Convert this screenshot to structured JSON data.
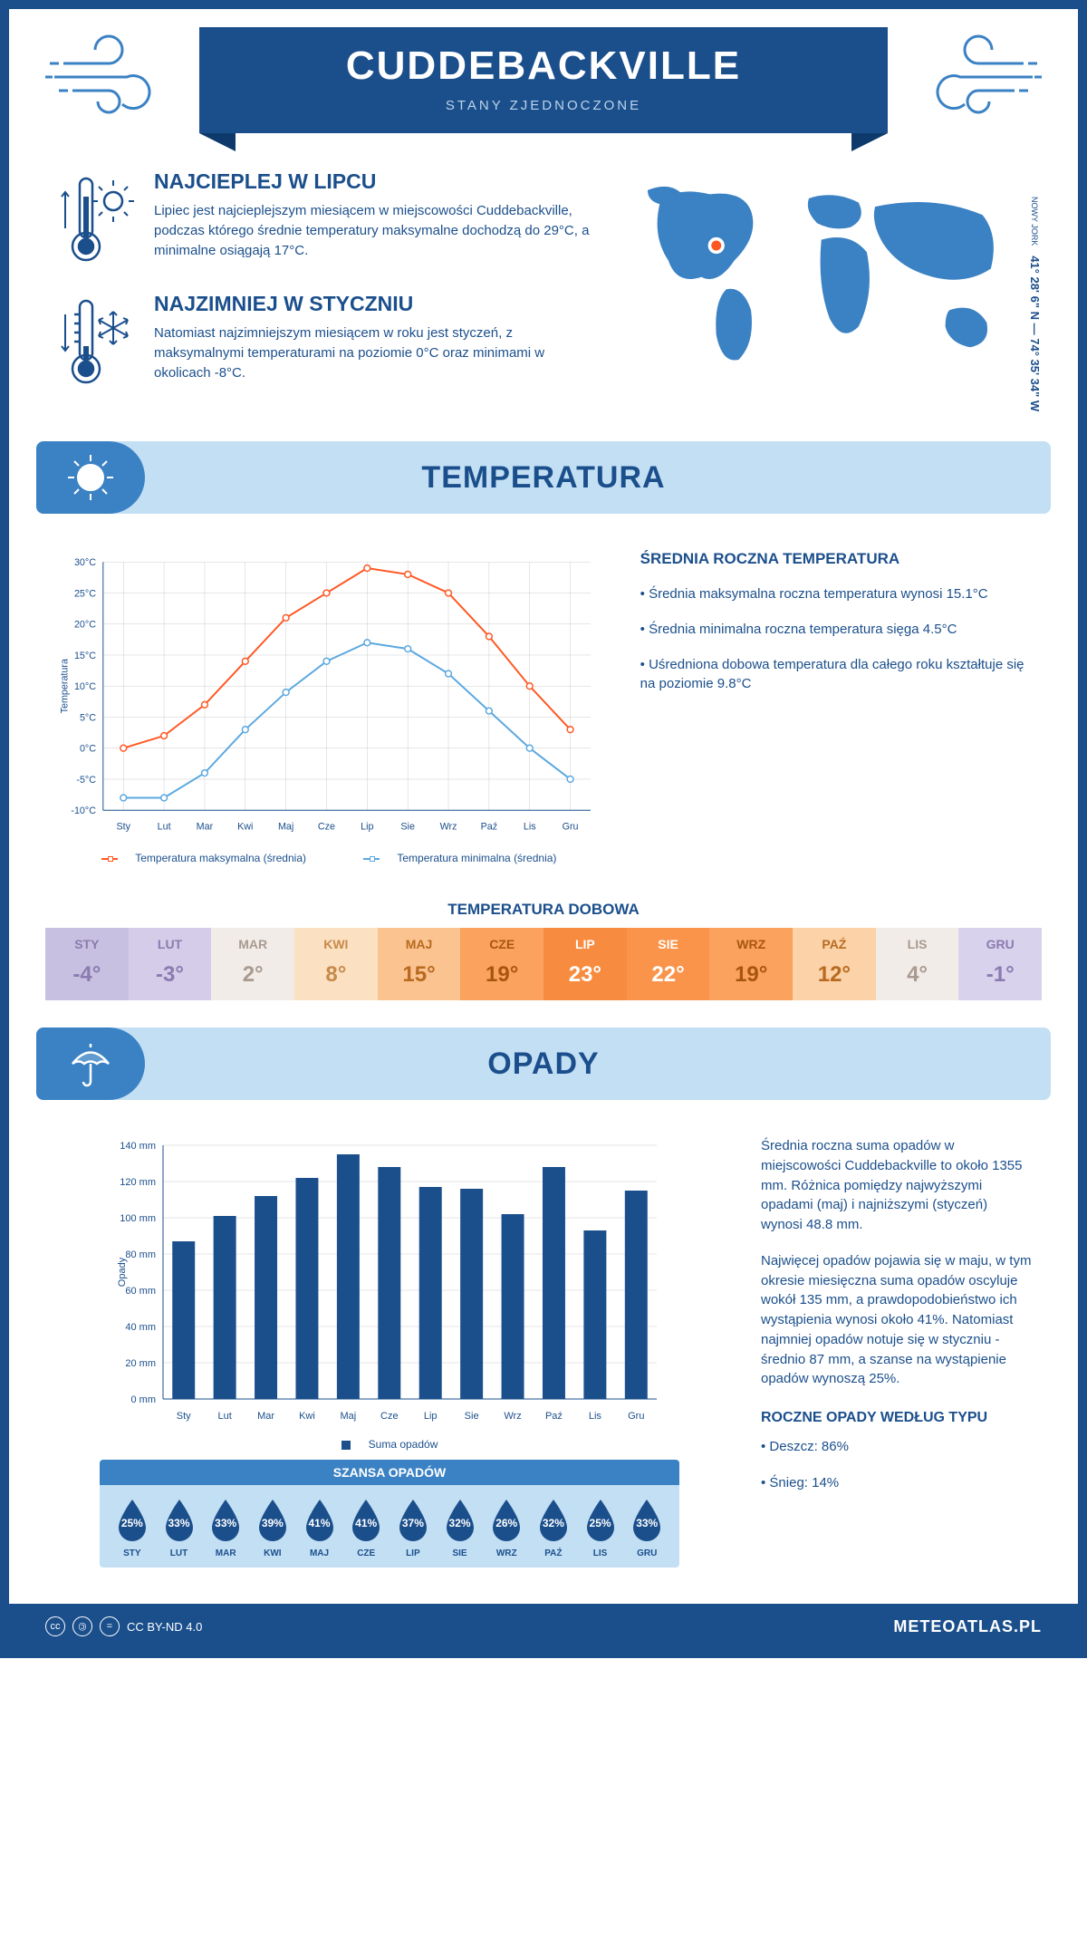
{
  "header": {
    "title": "CUDDEBACKVILLE",
    "subtitle": "STANY ZJEDNOCZONE"
  },
  "location": {
    "coords": "41° 28' 6\" N — 74° 35' 34\" W",
    "region": "NOWY JORK",
    "marker_color": "#ff5722",
    "map_color": "#3b82c4"
  },
  "facts": {
    "hot": {
      "title": "NAJCIEPLEJ W LIPCU",
      "text": "Lipiec jest najcieplejszym miesiącem w miejscowości Cuddebackville, podczas którego średnie temperatury maksymalne dochodzą do 29°C, a minimalne osiągają 17°C."
    },
    "cold": {
      "title": "NAJZIMNIEJ W STYCZNIU",
      "text": "Natomiast najzimniejszym miesiącem w roku jest styczeń, z maksymalnymi temperaturami na poziomie 0°C oraz minimami w okolicach -8°C."
    }
  },
  "temperature_section": {
    "title": "TEMPERATURA",
    "chart": {
      "type": "line",
      "y_label": "Temperatura",
      "y_min": -10,
      "y_max": 30,
      "y_step": 5,
      "months": [
        "Sty",
        "Lut",
        "Mar",
        "Kwi",
        "Maj",
        "Cze",
        "Lip",
        "Sie",
        "Wrz",
        "Paź",
        "Lis",
        "Gru"
      ],
      "series": [
        {
          "name": "Temperatura maksymalna (średnia)",
          "color": "#ff5722",
          "values": [
            0,
            2,
            7,
            14,
            21,
            25,
            29,
            28,
            25,
            18,
            10,
            3
          ]
        },
        {
          "name": "Temperatura minimalna (średnia)",
          "color": "#5ba8e0",
          "values": [
            -8,
            -8,
            -4,
            3,
            9,
            14,
            17,
            16,
            12,
            6,
            0,
            -5
          ]
        }
      ],
      "grid_color": "#cccccc",
      "background": "#ffffff"
    },
    "summary": {
      "title": "ŚREDNIA ROCZNA TEMPERATURA",
      "bullets": [
        "Średnia maksymalna roczna temperatura wynosi 15.1°C",
        "Średnia minimalna roczna temperatura sięga 4.5°C",
        "Uśredniona dobowa temperatura dla całego roku kształtuje się na poziomie 9.8°C"
      ]
    },
    "daily": {
      "title": "TEMPERATURA DOBOWA",
      "months": [
        "STY",
        "LUT",
        "MAR",
        "KWI",
        "MAJ",
        "CZE",
        "LIP",
        "SIE",
        "WRZ",
        "PAŹ",
        "LIS",
        "GRU"
      ],
      "values": [
        "-4°",
        "-3°",
        "2°",
        "8°",
        "15°",
        "19°",
        "23°",
        "22°",
        "19°",
        "12°",
        "4°",
        "-1°"
      ],
      "bg_colors": [
        "#c8c0e0",
        "#d4cce8",
        "#f2ece8",
        "#fbe1c2",
        "#fbc38f",
        "#fba25e",
        "#f78b3f",
        "#f9944a",
        "#fba25e",
        "#fcd2a8",
        "#f2ece8",
        "#d9d2ec"
      ],
      "text_colors": [
        "#8a7bb0",
        "#8a7bb0",
        "#a89a90",
        "#c78a4a",
        "#b86a20",
        "#a85510",
        "#fff",
        "#fff",
        "#a85510",
        "#b86a20",
        "#a89a90",
        "#8a7bb0"
      ]
    }
  },
  "precip_section": {
    "title": "OPADY",
    "chart": {
      "type": "bar",
      "y_label": "Opady",
      "y_min": 0,
      "y_max": 140,
      "y_step": 20,
      "months": [
        "Sty",
        "Lut",
        "Mar",
        "Kwi",
        "Maj",
        "Cze",
        "Lip",
        "Sie",
        "Wrz",
        "Paź",
        "Lis",
        "Gru"
      ],
      "values": [
        87,
        101,
        112,
        122,
        135,
        128,
        117,
        116,
        102,
        128,
        93,
        115
      ],
      "bar_color": "#1b4f8c",
      "legend": "Suma opadów",
      "grid_color": "#cccccc"
    },
    "text": {
      "p1": "Średnia roczna suma opadów w miejscowości Cuddebackville to około 1355 mm. Różnica pomiędzy najwyższymi opadami (maj) i najniższymi (styczeń) wynosi 48.8 mm.",
      "p2": "Najwięcej opadów pojawia się w maju, w tym okresie miesięczna suma opadów oscyluje wokół 135 mm, a prawdopodobieństwo ich wystąpienia wynosi około 41%. Natomiast najmniej opadów notuje się w styczniu - średnio 87 mm, a szanse na wystąpienie opadów wynoszą 25%.",
      "type_title": "ROCZNE OPADY WEDŁUG TYPU",
      "type_bullets": [
        "Deszcz: 86%",
        "Śnieg: 14%"
      ]
    },
    "chance": {
      "title": "SZANSA OPADÓW",
      "months": [
        "STY",
        "LUT",
        "MAR",
        "KWI",
        "MAJ",
        "CZE",
        "LIP",
        "SIE",
        "WRZ",
        "PAŹ",
        "LIS",
        "GRU"
      ],
      "values": [
        "25%",
        "33%",
        "33%",
        "39%",
        "41%",
        "41%",
        "37%",
        "32%",
        "26%",
        "32%",
        "25%",
        "33%"
      ],
      "drop_color": "#1b4f8c"
    }
  },
  "footer": {
    "license": "CC BY-ND 4.0",
    "site": "METEOATLAS.PL"
  },
  "colors": {
    "primary": "#1b4f8c",
    "light_blue": "#c3dff4",
    "accent_blue": "#3b82c4"
  }
}
